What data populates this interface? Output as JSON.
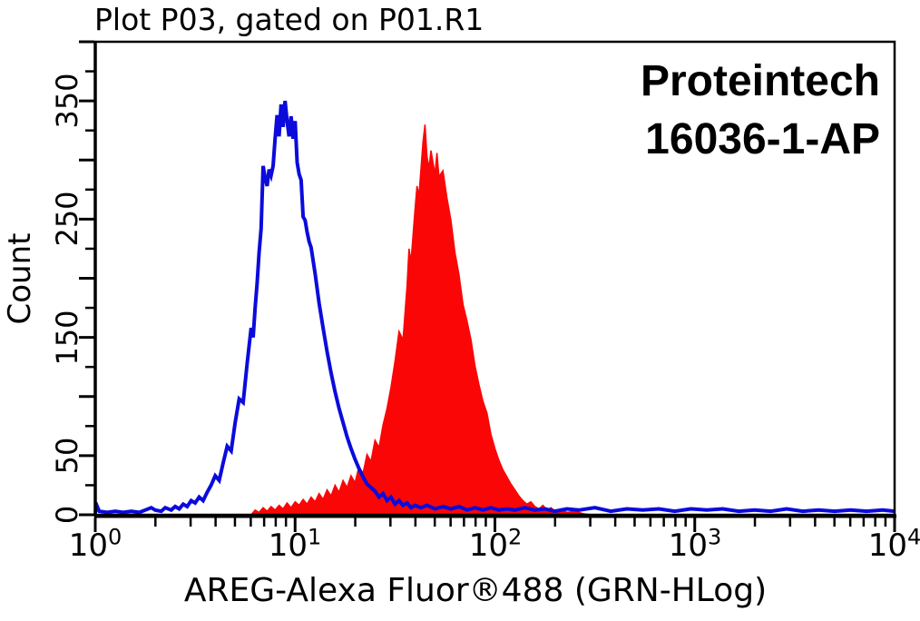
{
  "title": "Plot P03, gated on P01.R1",
  "watermark": {
    "line1": "Proteintech",
    "line2": "16036-1-AP"
  },
  "colors": {
    "blue": "#0b0bdc",
    "red": "#fa0606",
    "axis": "#000000",
    "background": "#ffffff"
  },
  "chart_data": {
    "type": "area",
    "title": "Plot P03, gated on P01.R1",
    "xlabel": "AREG-Alexa Fluor®488 (GRN-HLog)",
    "ylabel": "Count",
    "x_scale": "log10",
    "xlim_log": [
      0,
      4
    ],
    "ylim": [
      0,
      400
    ],
    "grid": false,
    "legend": null,
    "x_tick_base": "10",
    "x_tick_exponents": [
      0,
      1,
      2,
      3,
      4
    ],
    "y_tick_minor_step": 25,
    "y_tick_major_step": 50,
    "y_tick_labels": [
      {
        "value": 0,
        "label": "0"
      },
      {
        "value": 50,
        "label": "50"
      },
      {
        "value": 150,
        "label": "150"
      },
      {
        "value": 250,
        "label": "250"
      },
      {
        "value": 350,
        "label": "350"
      }
    ],
    "series": [
      {
        "name": "red filled histogram (16036-1-AP stained)",
        "style": "filled-area",
        "color": "#fa0606",
        "peak": {
          "x_log": 1.65,
          "count": 330
        },
        "points_log_count": [
          [
            0.78,
            0
          ],
          [
            0.8,
            4
          ],
          [
            0.82,
            2
          ],
          [
            0.84,
            6
          ],
          [
            0.86,
            3
          ],
          [
            0.88,
            7
          ],
          [
            0.9,
            4
          ],
          [
            0.92,
            8
          ],
          [
            0.94,
            5
          ],
          [
            0.96,
            10
          ],
          [
            0.98,
            6
          ],
          [
            1.0,
            11
          ],
          [
            1.02,
            8
          ],
          [
            1.04,
            13
          ],
          [
            1.06,
            9
          ],
          [
            1.08,
            15
          ],
          [
            1.1,
            11
          ],
          [
            1.12,
            18
          ],
          [
            1.14,
            13
          ],
          [
            1.16,
            21
          ],
          [
            1.18,
            16
          ],
          [
            1.2,
            25
          ],
          [
            1.22,
            19
          ],
          [
            1.24,
            29
          ],
          [
            1.26,
            23
          ],
          [
            1.28,
            33
          ],
          [
            1.3,
            27
          ],
          [
            1.32,
            41
          ],
          [
            1.34,
            35
          ],
          [
            1.36,
            51
          ],
          [
            1.38,
            45
          ],
          [
            1.4,
            63
          ],
          [
            1.42,
            57
          ],
          [
            1.44,
            76
          ],
          [
            1.46,
            90
          ],
          [
            1.48,
            108
          ],
          [
            1.5,
            130
          ],
          [
            1.52,
            155
          ],
          [
            1.54,
            148
          ],
          [
            1.56,
            193
          ],
          [
            1.57,
            225
          ],
          [
            1.58,
            214
          ],
          [
            1.6,
            258
          ],
          [
            1.61,
            278
          ],
          [
            1.62,
            270
          ],
          [
            1.64,
            315
          ],
          [
            1.65,
            330
          ],
          [
            1.66,
            303
          ],
          [
            1.67,
            293
          ],
          [
            1.68,
            308
          ],
          [
            1.7,
            288
          ],
          [
            1.71,
            306
          ],
          [
            1.72,
            286
          ],
          [
            1.74,
            291
          ],
          [
            1.76,
            268
          ],
          [
            1.78,
            249
          ],
          [
            1.8,
            222
          ],
          [
            1.82,
            203
          ],
          [
            1.84,
            178
          ],
          [
            1.86,
            164
          ],
          [
            1.88,
            148
          ],
          [
            1.9,
            126
          ],
          [
            1.92,
            110
          ],
          [
            1.94,
            96
          ],
          [
            1.96,
            86
          ],
          [
            1.98,
            68
          ],
          [
            2.0,
            56
          ],
          [
            2.02,
            46
          ],
          [
            2.04,
            38
          ],
          [
            2.06,
            32
          ],
          [
            2.08,
            26
          ],
          [
            2.1,
            21
          ],
          [
            2.12,
            16
          ],
          [
            2.14,
            12
          ],
          [
            2.16,
            9
          ],
          [
            2.18,
            11
          ],
          [
            2.2,
            7
          ],
          [
            2.22,
            5
          ],
          [
            2.24,
            8
          ],
          [
            2.26,
            4
          ],
          [
            2.28,
            6
          ],
          [
            2.3,
            3
          ],
          [
            2.33,
            5
          ],
          [
            2.36,
            2
          ],
          [
            2.4,
            3
          ],
          [
            2.44,
            1
          ],
          [
            2.48,
            0
          ]
        ]
      },
      {
        "name": "blue open histogram (control)",
        "style": "line",
        "color": "#0b0bdc",
        "peak": {
          "x_log": 0.95,
          "count": 350
        },
        "points_log_count": [
          [
            0.0,
            2
          ],
          [
            0.01,
            7
          ],
          [
            0.02,
            3
          ],
          [
            0.06,
            2
          ],
          [
            0.1,
            3
          ],
          [
            0.14,
            2
          ],
          [
            0.18,
            3
          ],
          [
            0.22,
            2
          ],
          [
            0.25,
            4
          ],
          [
            0.28,
            6
          ],
          [
            0.3,
            4
          ],
          [
            0.33,
            3
          ],
          [
            0.35,
            6
          ],
          [
            0.38,
            4
          ],
          [
            0.4,
            7
          ],
          [
            0.42,
            5
          ],
          [
            0.44,
            9
          ],
          [
            0.46,
            7
          ],
          [
            0.48,
            12
          ],
          [
            0.5,
            10
          ],
          [
            0.52,
            15
          ],
          [
            0.54,
            12
          ],
          [
            0.56,
            19
          ],
          [
            0.58,
            25
          ],
          [
            0.6,
            33
          ],
          [
            0.62,
            29
          ],
          [
            0.64,
            44
          ],
          [
            0.66,
            58
          ],
          [
            0.68,
            54
          ],
          [
            0.7,
            78
          ],
          [
            0.72,
            98
          ],
          [
            0.74,
            95
          ],
          [
            0.76,
            128
          ],
          [
            0.78,
            158
          ],
          [
            0.79,
            150
          ],
          [
            0.8,
            175
          ],
          [
            0.81,
            196
          ],
          [
            0.82,
            222
          ],
          [
            0.83,
            242
          ],
          [
            0.84,
            295
          ],
          [
            0.85,
            285
          ],
          [
            0.86,
            278
          ],
          [
            0.87,
            292
          ],
          [
            0.88,
            287
          ],
          [
            0.89,
            295
          ],
          [
            0.9,
            318
          ],
          [
            0.91,
            338
          ],
          [
            0.92,
            320
          ],
          [
            0.93,
            347
          ],
          [
            0.94,
            328
          ],
          [
            0.95,
            350
          ],
          [
            0.96,
            333
          ],
          [
            0.97,
            320
          ],
          [
            0.98,
            337
          ],
          [
            0.99,
            318
          ],
          [
            1.0,
            333
          ],
          [
            1.01,
            298
          ],
          [
            1.02,
            288
          ],
          [
            1.03,
            283
          ],
          [
            1.04,
            252
          ],
          [
            1.05,
            249
          ],
          [
            1.06,
            239
          ],
          [
            1.07,
            231
          ],
          [
            1.08,
            226
          ],
          [
            1.1,
            204
          ],
          [
            1.12,
            179
          ],
          [
            1.14,
            158
          ],
          [
            1.16,
            138
          ],
          [
            1.18,
            120
          ],
          [
            1.2,
            104
          ],
          [
            1.22,
            90
          ],
          [
            1.24,
            78
          ],
          [
            1.26,
            66
          ],
          [
            1.28,
            56
          ],
          [
            1.3,
            47
          ],
          [
            1.32,
            39
          ],
          [
            1.34,
            32
          ],
          [
            1.36,
            26
          ],
          [
            1.38,
            23
          ],
          [
            1.4,
            20
          ],
          [
            1.42,
            15
          ],
          [
            1.44,
            18
          ],
          [
            1.46,
            12
          ],
          [
            1.48,
            15
          ],
          [
            1.5,
            9
          ],
          [
            1.52,
            12
          ],
          [
            1.54,
            8
          ],
          [
            1.56,
            10
          ],
          [
            1.58,
            6
          ],
          [
            1.6,
            8
          ],
          [
            1.63,
            6
          ],
          [
            1.66,
            8
          ],
          [
            1.7,
            5
          ],
          [
            1.74,
            7
          ],
          [
            1.78,
            5
          ],
          [
            1.82,
            7
          ],
          [
            1.86,
            4
          ],
          [
            1.9,
            6
          ],
          [
            1.94,
            4
          ],
          [
            1.98,
            6
          ],
          [
            2.02,
            4
          ],
          [
            2.06,
            5
          ],
          [
            2.1,
            4
          ],
          [
            2.15,
            6
          ],
          [
            2.2,
            4
          ],
          [
            2.25,
            5
          ],
          [
            2.3,
            3
          ],
          [
            2.36,
            5
          ],
          [
            2.42,
            4
          ],
          [
            2.5,
            6
          ],
          [
            2.58,
            3
          ],
          [
            2.66,
            5
          ],
          [
            2.74,
            4
          ],
          [
            2.82,
            5
          ],
          [
            2.9,
            3
          ],
          [
            2.98,
            5
          ],
          [
            3.06,
            4
          ],
          [
            3.14,
            5
          ],
          [
            3.22,
            3
          ],
          [
            3.3,
            4
          ],
          [
            3.38,
            3
          ],
          [
            3.46,
            5
          ],
          [
            3.54,
            3
          ],
          [
            3.62,
            4
          ],
          [
            3.7,
            3
          ],
          [
            3.78,
            4
          ],
          [
            3.86,
            3
          ],
          [
            3.94,
            4
          ],
          [
            4.0,
            3
          ]
        ]
      }
    ]
  }
}
